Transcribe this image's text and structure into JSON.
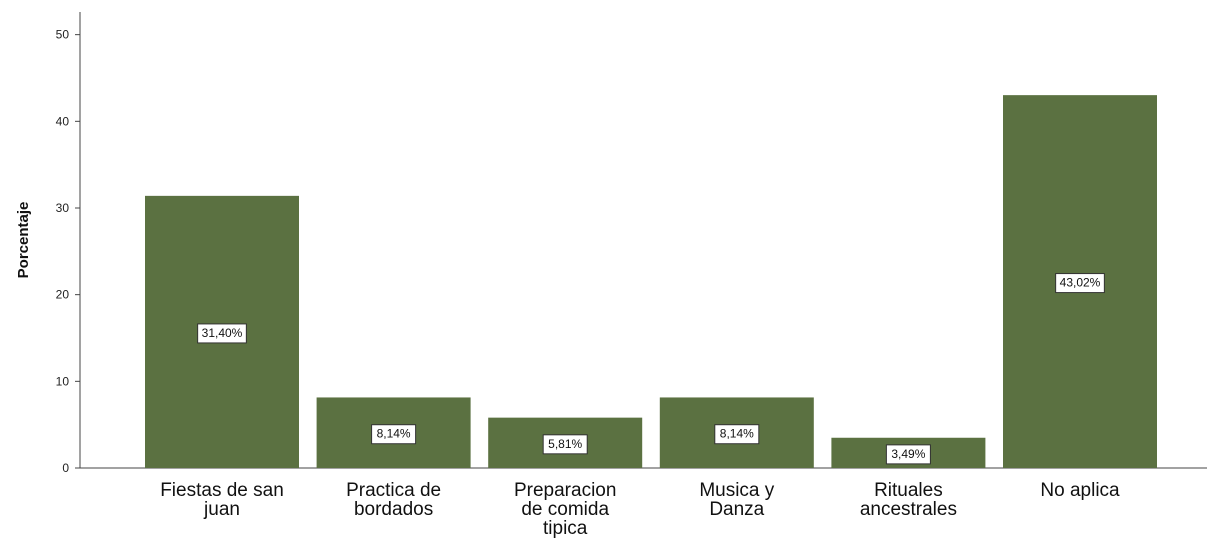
{
  "chart_data": {
    "type": "bar",
    "ylabel": "Porcentaje",
    "ylim": [
      0,
      52
    ],
    "yticks": [
      0,
      10,
      20,
      30,
      40,
      50
    ],
    "categories": [
      [
        "Fiestas de san",
        "juan"
      ],
      [
        "Practica de",
        "bordados"
      ],
      [
        "Preparacion",
        "de comida",
        "tipica"
      ],
      [
        "Musica y",
        "Danza"
      ],
      [
        "Rituales",
        "ancestrales"
      ],
      [
        "No aplica"
      ]
    ],
    "values": [
      31.4,
      8.14,
      5.81,
      8.14,
      3.49,
      43.02
    ],
    "data_labels": [
      "31,40%",
      "8,14%",
      "5,81%",
      "8,14%",
      "3,49%",
      "43,02%"
    ],
    "bar_color": "#5b7141",
    "grid": false
  }
}
